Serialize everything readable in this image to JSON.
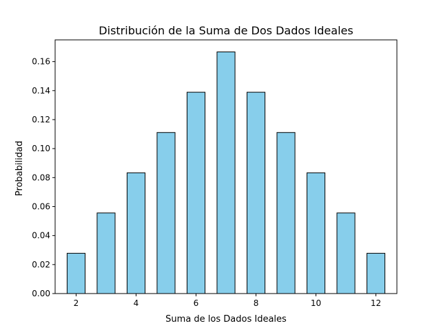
{
  "chart_data": {
    "type": "bar",
    "title": "Distribución de la Suma de Dos Dados Ideales",
    "xlabel": "Suma de los Dados Ideales",
    "ylabel": "Probabilidad",
    "x": [
      2,
      3,
      4,
      5,
      6,
      7,
      8,
      9,
      10,
      11,
      12
    ],
    "values": [
      0.0278,
      0.0556,
      0.0833,
      0.1111,
      0.1389,
      0.1667,
      0.1389,
      0.1111,
      0.0833,
      0.0556,
      0.0278
    ],
    "xlim": [
      1.3,
      12.7
    ],
    "ylim": [
      0,
      0.175
    ],
    "xticks": [
      "2",
      "4",
      "6",
      "8",
      "10",
      "12"
    ],
    "yticks": [
      "0.00",
      "0.02",
      "0.04",
      "0.06",
      "0.08",
      "0.10",
      "0.12",
      "0.14",
      "0.16"
    ],
    "bar_color": "#87ceeb",
    "edge_color": "#000000",
    "grid": false,
    "legend": "none"
  }
}
